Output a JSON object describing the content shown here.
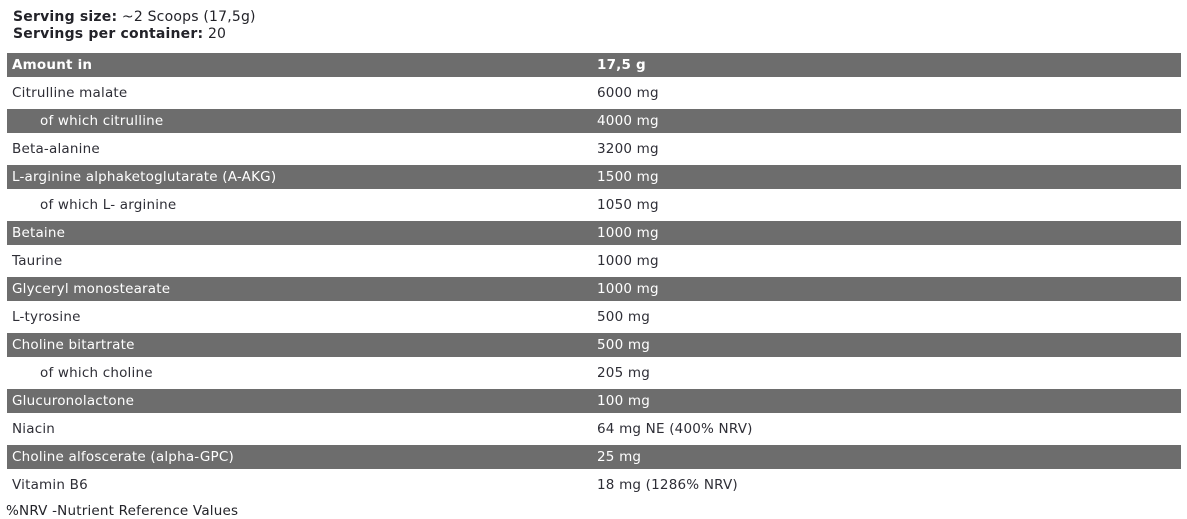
{
  "serving": {
    "size_label": "Serving size:",
    "size_value": "~2 Scoops (17,5g)",
    "per_container_label": "Servings per container:",
    "per_container_value": "20"
  },
  "table": {
    "header": {
      "name": "Amount in",
      "amount": "17,5 g"
    },
    "rows": [
      {
        "name": "Citrulline malate",
        "amount": "6000 mg",
        "indent": false,
        "shade": "light"
      },
      {
        "name": "of which citrulline",
        "amount": "4000 mg",
        "indent": true,
        "shade": "dark"
      },
      {
        "name": "Beta-alanine",
        "amount": "3200 mg",
        "indent": false,
        "shade": "light"
      },
      {
        "name": "L-arginine alphaketoglutarate (A-AKG)",
        "amount": "1500 mg",
        "indent": false,
        "shade": "dark"
      },
      {
        "name": "of which L- arginine",
        "amount": "1050 mg",
        "indent": true,
        "shade": "light"
      },
      {
        "name": "Betaine",
        "amount": "1000 mg",
        "indent": false,
        "shade": "dark"
      },
      {
        "name": "Taurine",
        "amount": "1000 mg",
        "indent": false,
        "shade": "light"
      },
      {
        "name": "Glyceryl monostearate",
        "amount": "1000 mg",
        "indent": false,
        "shade": "dark"
      },
      {
        "name": "L-tyrosine",
        "amount": "500 mg",
        "indent": false,
        "shade": "light"
      },
      {
        "name": "Choline bitartrate",
        "amount": "500 mg",
        "indent": false,
        "shade": "dark"
      },
      {
        "name": "of which choline",
        "amount": "205 mg",
        "indent": true,
        "shade": "light"
      },
      {
        "name": "Glucuronolactone",
        "amount": "100 mg",
        "indent": false,
        "shade": "dark"
      },
      {
        "name": "Niacin",
        "amount": "64 mg NE (400% NRV)",
        "indent": false,
        "shade": "light"
      },
      {
        "name": "Choline alfoscerate (alpha-GPC)",
        "amount": "25 mg",
        "indent": false,
        "shade": "dark"
      },
      {
        "name": "Vitamin B6",
        "amount": "18 mg (1286% NRV)",
        "indent": false,
        "shade": "light"
      }
    ]
  },
  "footnote": "%NRV -Nutrient Reference Values",
  "colors": {
    "band": "#6d6d6d",
    "band_text": "#ffffff",
    "body_text": "#2e2e36",
    "background": "#ffffff"
  }
}
